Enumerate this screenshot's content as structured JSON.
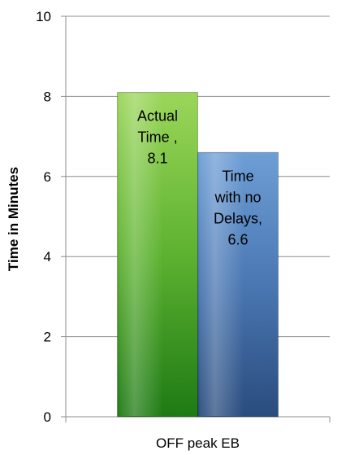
{
  "chart_data": {
    "type": "bar",
    "categories": [
      "OFF peak EB"
    ],
    "series": [
      {
        "name": "Actual Time",
        "values": [
          8.1
        ],
        "color": "#63B935",
        "labels": [
          "Actual",
          "Time ,",
          "8.1"
        ]
      },
      {
        "name": "Time with no Delays",
        "values": [
          6.6
        ],
        "color": "#4A7AB8",
        "labels": [
          "Time",
          "with no",
          "Delays,",
          "6.6"
        ]
      }
    ],
    "title": "",
    "xlabel": "",
    "ylabel": "Time in Minutes",
    "ylim": [
      0,
      10
    ],
    "yticks": [
      0,
      2,
      4,
      6,
      8,
      10
    ],
    "grid": true,
    "legend": "none"
  }
}
